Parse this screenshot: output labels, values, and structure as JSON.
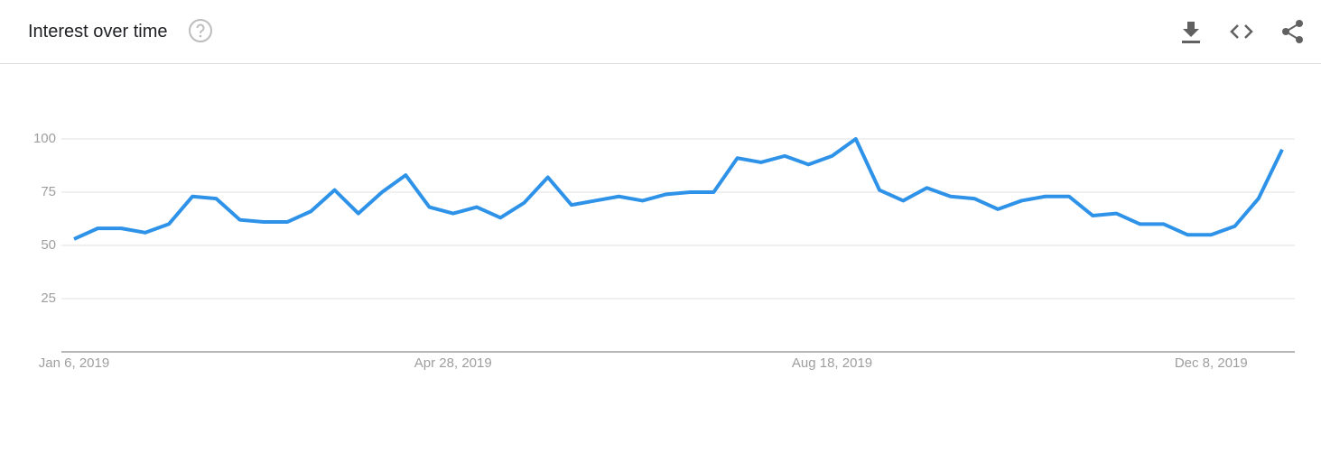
{
  "chart_data": {
    "type": "line",
    "title": "Interest over time",
    "categories": [
      "Jan 6, 2019",
      null,
      null,
      null,
      null,
      null,
      null,
      null,
      null,
      null,
      null,
      null,
      null,
      null,
      null,
      null,
      "Apr 28, 2019",
      null,
      null,
      null,
      null,
      null,
      null,
      null,
      null,
      null,
      null,
      null,
      null,
      null,
      null,
      null,
      "Aug 18, 2019",
      null,
      null,
      null,
      null,
      null,
      null,
      null,
      null,
      null,
      null,
      null,
      null,
      null,
      null,
      null,
      "Dec 8, 2019",
      null,
      null,
      null
    ],
    "values": [
      53,
      58,
      58,
      56,
      60,
      73,
      72,
      62,
      61,
      61,
      66,
      76,
      65,
      75,
      83,
      68,
      65,
      68,
      63,
      70,
      82,
      69,
      71,
      73,
      71,
      74,
      75,
      75,
      91,
      89,
      92,
      88,
      92,
      100,
      76,
      71,
      77,
      73,
      72,
      67,
      71,
      73,
      73,
      64,
      65,
      60,
      60,
      55,
      55,
      59,
      72,
      95
    ],
    "color": "#2e93e8",
    "ylim": [
      0,
      100
    ],
    "yticks": [
      25,
      50,
      75,
      100
    ],
    "grid": true
  }
}
